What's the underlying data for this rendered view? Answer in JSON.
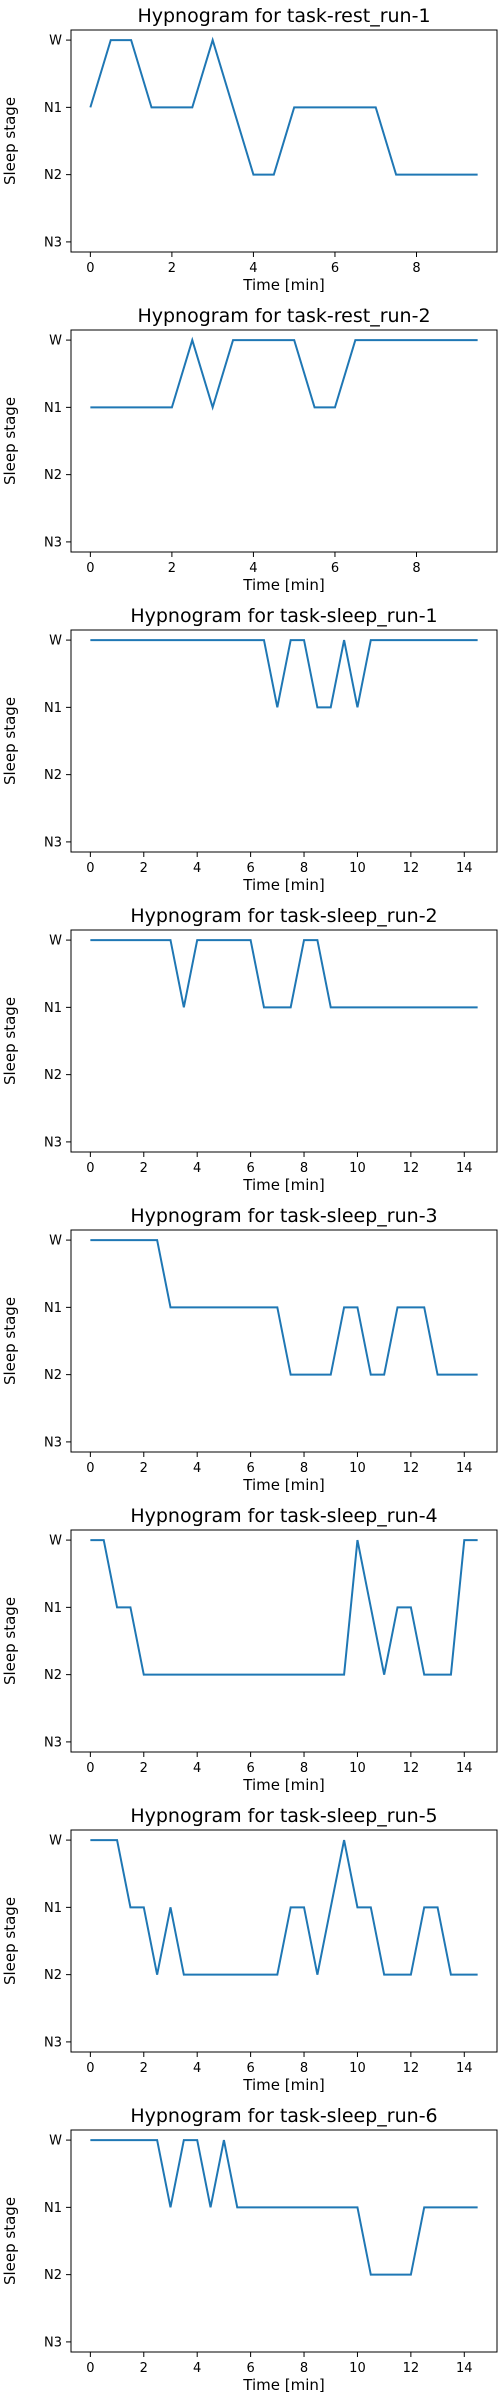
{
  "color": "#1f77b4",
  "chart_data": [
    {
      "type": "line",
      "title": "Hypnogram for task-rest_run-1",
      "xlabel": "Time [min]",
      "ylabel": "Sleep stage",
      "xlim": [
        -0.475,
        9.975
      ],
      "xticks": [
        0,
        2,
        4,
        6,
        8
      ],
      "yticks": [
        "W",
        "N1",
        "N2",
        "N3"
      ],
      "x": [
        0,
        0.5,
        1,
        1.5,
        2,
        2.5,
        3,
        3.5,
        4,
        4.5,
        5,
        5.5,
        6,
        6.5,
        7,
        7.5,
        8,
        8.5,
        9,
        9.5
      ],
      "y": [
        "N1",
        "W",
        "W",
        "N1",
        "N1",
        "N1",
        "W",
        "N1",
        "N2",
        "N2",
        "N1",
        "N1",
        "N1",
        "N1",
        "N1",
        "N2",
        "N2",
        "N2",
        "N2",
        "N2"
      ]
    },
    {
      "type": "line",
      "title": "Hypnogram for task-rest_run-2",
      "xlabel": "Time [min]",
      "ylabel": "Sleep stage",
      "xlim": [
        -0.475,
        9.975
      ],
      "xticks": [
        0,
        2,
        4,
        6,
        8
      ],
      "yticks": [
        "W",
        "N1",
        "N2",
        "N3"
      ],
      "x": [
        0,
        0.5,
        1,
        1.5,
        2,
        2.5,
        3,
        3.5,
        4,
        4.5,
        5,
        5.5,
        6,
        6.5,
        7,
        7.5,
        8,
        8.5,
        9,
        9.5
      ],
      "y": [
        "N1",
        "N1",
        "N1",
        "N1",
        "N1",
        "W",
        "N1",
        "W",
        "W",
        "W",
        "W",
        "N1",
        "N1",
        "W",
        "W",
        "W",
        "W",
        "W",
        "W",
        "W"
      ]
    },
    {
      "type": "line",
      "title": "Hypnogram for task-sleep_run-1",
      "xlabel": "Time [min]",
      "ylabel": "Sleep stage",
      "xlim": [
        -0.725,
        15.225
      ],
      "xticks": [
        0,
        2,
        4,
        6,
        8,
        10,
        12,
        14
      ],
      "yticks": [
        "W",
        "N1",
        "N2",
        "N3"
      ],
      "x": [
        0,
        0.5,
        1,
        1.5,
        2,
        2.5,
        3,
        3.5,
        4,
        4.5,
        5,
        5.5,
        6,
        6.5,
        7,
        7.5,
        8,
        8.5,
        9,
        9.5,
        10,
        10.5,
        11,
        11.5,
        12,
        12.5,
        13,
        13.5,
        14,
        14.5
      ],
      "y": [
        "W",
        "W",
        "W",
        "W",
        "W",
        "W",
        "W",
        "W",
        "W",
        "W",
        "W",
        "W",
        "W",
        "W",
        "N1",
        "W",
        "W",
        "N1",
        "N1",
        "W",
        "N1",
        "W",
        "W",
        "W",
        "W",
        "W",
        "W",
        "W",
        "W",
        "W"
      ]
    },
    {
      "type": "line",
      "title": "Hypnogram for task-sleep_run-2",
      "xlabel": "Time [min]",
      "ylabel": "Sleep stage",
      "xlim": [
        -0.725,
        15.225
      ],
      "xticks": [
        0,
        2,
        4,
        6,
        8,
        10,
        12,
        14
      ],
      "yticks": [
        "W",
        "N1",
        "N2",
        "N3"
      ],
      "x": [
        0,
        0.5,
        1,
        1.5,
        2,
        2.5,
        3,
        3.5,
        4,
        4.5,
        5,
        5.5,
        6,
        6.5,
        7,
        7.5,
        8,
        8.5,
        9,
        9.5,
        10,
        10.5,
        11,
        11.5,
        12,
        12.5,
        13,
        13.5,
        14,
        14.5
      ],
      "y": [
        "W",
        "W",
        "W",
        "W",
        "W",
        "W",
        "W",
        "N1",
        "W",
        "W",
        "W",
        "W",
        "W",
        "N1",
        "N1",
        "N1",
        "W",
        "W",
        "N1",
        "N1",
        "N1",
        "N1",
        "N1",
        "N1",
        "N1",
        "N1",
        "N1",
        "N1",
        "N1",
        "N1"
      ]
    },
    {
      "type": "line",
      "title": "Hypnogram for task-sleep_run-3",
      "xlabel": "Time [min]",
      "ylabel": "Sleep stage",
      "xlim": [
        -0.725,
        15.225
      ],
      "xticks": [
        0,
        2,
        4,
        6,
        8,
        10,
        12,
        14
      ],
      "yticks": [
        "W",
        "N1",
        "N2",
        "N3"
      ],
      "x": [
        0,
        0.5,
        1,
        1.5,
        2,
        2.5,
        3,
        3.5,
        4,
        4.5,
        5,
        5.5,
        6,
        6.5,
        7,
        7.5,
        8,
        8.5,
        9,
        9.5,
        10,
        10.5,
        11,
        11.5,
        12,
        12.5,
        13,
        13.5,
        14,
        14.5
      ],
      "y": [
        "W",
        "W",
        "W",
        "W",
        "W",
        "W",
        "N1",
        "N1",
        "N1",
        "N1",
        "N1",
        "N1",
        "N1",
        "N1",
        "N1",
        "N2",
        "N2",
        "N2",
        "N2",
        "N1",
        "N1",
        "N2",
        "N2",
        "N1",
        "N1",
        "N1",
        "N2",
        "N2",
        "N2",
        "N2"
      ]
    },
    {
      "type": "line",
      "title": "Hypnogram for task-sleep_run-4",
      "xlabel": "Time [min]",
      "ylabel": "Sleep stage",
      "xlim": [
        -0.725,
        15.225
      ],
      "xticks": [
        0,
        2,
        4,
        6,
        8,
        10,
        12,
        14
      ],
      "yticks": [
        "W",
        "N1",
        "N2",
        "N3"
      ],
      "x": [
        0,
        0.5,
        1,
        1.5,
        2,
        2.5,
        3,
        3.5,
        4,
        4.5,
        5,
        5.5,
        6,
        6.5,
        7,
        7.5,
        8,
        8.5,
        9,
        9.5,
        10,
        10.5,
        11,
        11.5,
        12,
        12.5,
        13,
        13.5,
        14,
        14.5
      ],
      "y": [
        "W",
        "W",
        "N1",
        "N1",
        "N2",
        "N2",
        "N2",
        "N2",
        "N2",
        "N2",
        "N2",
        "N2",
        "N2",
        "N2",
        "N2",
        "N2",
        "N2",
        "N2",
        "N2",
        "N2",
        "W",
        "N1",
        "N2",
        "N1",
        "N1",
        "N2",
        "N2",
        "N2",
        "W",
        "W"
      ]
    },
    {
      "type": "line",
      "title": "Hypnogram for task-sleep_run-5",
      "xlabel": "Time [min]",
      "ylabel": "Sleep stage",
      "xlim": [
        -0.725,
        15.225
      ],
      "xticks": [
        0,
        2,
        4,
        6,
        8,
        10,
        12,
        14
      ],
      "yticks": [
        "W",
        "N1",
        "N2",
        "N3"
      ],
      "x": [
        0,
        0.5,
        1,
        1.5,
        2,
        2.5,
        3,
        3.5,
        4,
        4.5,
        5,
        5.5,
        6,
        6.5,
        7,
        7.5,
        8,
        8.5,
        9,
        9.5,
        10,
        10.5,
        11,
        11.5,
        12,
        12.5,
        13,
        13.5,
        14,
        14.5
      ],
      "y": [
        "W",
        "W",
        "W",
        "N1",
        "N1",
        "N2",
        "N1",
        "N2",
        "N2",
        "N2",
        "N2",
        "N2",
        "N2",
        "N2",
        "N2",
        "N1",
        "N1",
        "N2",
        "N1",
        "W",
        "N1",
        "N1",
        "N2",
        "N2",
        "N2",
        "N1",
        "N1",
        "N2",
        "N2",
        "N2"
      ]
    },
    {
      "type": "line",
      "title": "Hypnogram for task-sleep_run-6",
      "xlabel": "Time [min]",
      "ylabel": "Sleep stage",
      "xlim": [
        -0.725,
        15.225
      ],
      "xticks": [
        0,
        2,
        4,
        6,
        8,
        10,
        12,
        14
      ],
      "yticks": [
        "W",
        "N1",
        "N2",
        "N3"
      ],
      "x": [
        0,
        0.5,
        1,
        1.5,
        2,
        2.5,
        3,
        3.5,
        4,
        4.5,
        5,
        5.5,
        6,
        6.5,
        7,
        7.5,
        8,
        8.5,
        9,
        9.5,
        10,
        10.5,
        11,
        11.5,
        12,
        12.5,
        13,
        13.5,
        14,
        14.5
      ],
      "y": [
        "W",
        "W",
        "W",
        "W",
        "W",
        "W",
        "N1",
        "W",
        "W",
        "N1",
        "W",
        "N1",
        "N1",
        "N1",
        "N1",
        "N1",
        "N1",
        "N1",
        "N1",
        "N1",
        "N1",
        "N2",
        "N2",
        "N2",
        "N2",
        "N1",
        "N1",
        "N1",
        "N1",
        "N1"
      ]
    }
  ]
}
